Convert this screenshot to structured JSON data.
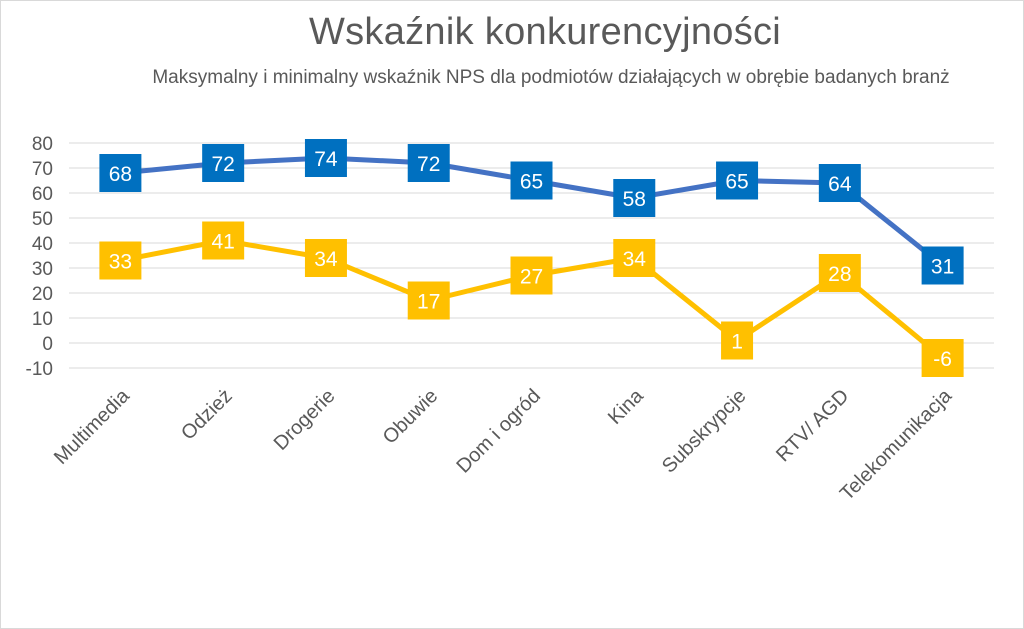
{
  "chart_data": {
    "type": "line",
    "title": "Wskaźnik konkurencyjności",
    "subtitle": "Maksymalny i minimalny wskaźnik NPS dla podmiotów działających w obrębie badanych branż",
    "categories": [
      "Multimedia",
      "Odzież",
      "Drogerie",
      "Obuwie",
      "Dom i ogród",
      "Kina",
      "Subskrypcje",
      "RTV/ AGD",
      "Telekomunikacja"
    ],
    "series": [
      {
        "values": [
          68,
          72,
          74,
          72,
          65,
          58,
          65,
          64,
          31
        ],
        "color": "#4472c4",
        "label_fill": "#0070c0"
      },
      {
        "values": [
          33,
          41,
          34,
          17,
          27,
          34,
          1,
          28,
          -6
        ],
        "color": "#ffc000",
        "label_fill": "#ffc000"
      }
    ],
    "ylim": [
      -10,
      80
    ],
    "yticks": [
      -10,
      0,
      10,
      20,
      30,
      40,
      50,
      60,
      70,
      80
    ],
    "grid": true,
    "legend": "none"
  }
}
